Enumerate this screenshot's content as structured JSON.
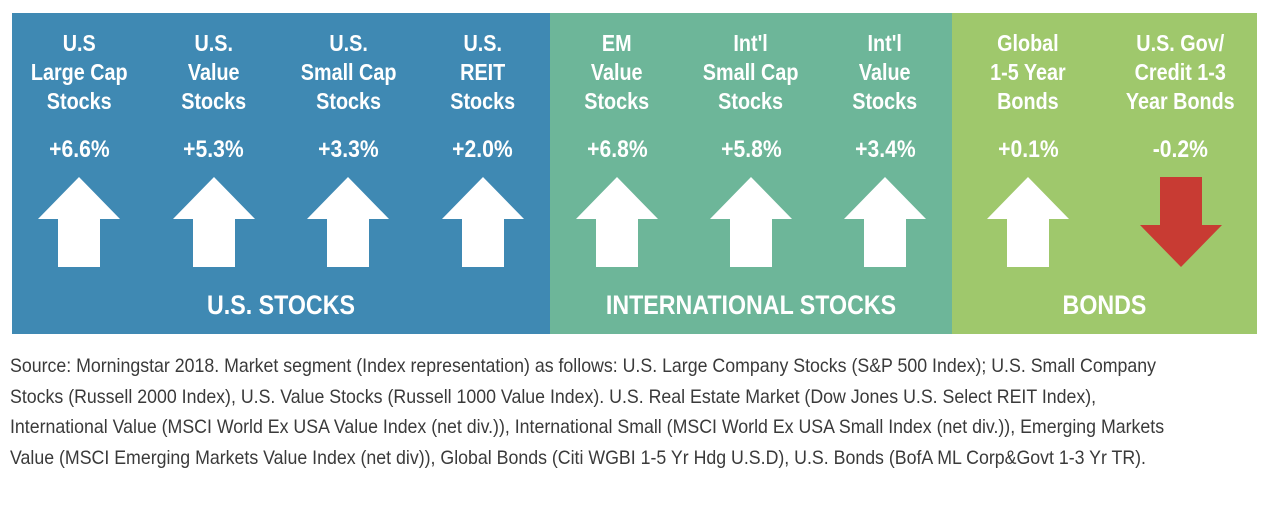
{
  "colors": {
    "us_panel": "#3f89b3",
    "intl_panel": "#6db699",
    "bonds_panel": "#9fc86c",
    "up_arrow": "#ffffff",
    "down_arrow": "#c83b33",
    "text_on_panel": "#ffffff"
  },
  "groups": [
    {
      "key": "us",
      "label": "U.S. STOCKS",
      "color": "#3f89b3",
      "items": [
        {
          "title_lines": [
            "U.S",
            "Large Cap",
            "Stocks"
          ],
          "value": "+6.6%",
          "direction": "up"
        },
        {
          "title_lines": [
            "U.S.",
            "Value",
            "Stocks"
          ],
          "value": "+5.3%",
          "direction": "up"
        },
        {
          "title_lines": [
            "U.S.",
            "Small Cap",
            "Stocks"
          ],
          "value": "+3.3%",
          "direction": "up"
        },
        {
          "title_lines": [
            "U.S.",
            "REIT",
            "Stocks"
          ],
          "value": "+2.0%",
          "direction": "up"
        }
      ]
    },
    {
      "key": "intl",
      "label": "INTERNATIONAL STOCKS",
      "color": "#6db699",
      "items": [
        {
          "title_lines": [
            "EM",
            "Value",
            "Stocks"
          ],
          "value": "+6.8%",
          "direction": "up"
        },
        {
          "title_lines": [
            "Int'l",
            "Small Cap",
            "Stocks"
          ],
          "value": "+5.8%",
          "direction": "up"
        },
        {
          "title_lines": [
            "Int'l",
            "Value",
            "Stocks"
          ],
          "value": "+3.4%",
          "direction": "up"
        }
      ]
    },
    {
      "key": "bonds",
      "label": "BONDS",
      "color": "#9fc86c",
      "items": [
        {
          "title_lines": [
            "Global",
            "1-5 Year",
            "Bonds"
          ],
          "value": "+0.1%",
          "direction": "up"
        },
        {
          "title_lines": [
            "U.S. Gov/",
            "Credit 1-3",
            "Year Bonds"
          ],
          "value": "-0.2%",
          "direction": "down"
        }
      ]
    }
  ],
  "source_note": "Source: Morningstar 2018. Market segment (Index representation) as follows: U.S. Large Company Stocks (S&P 500 Index); U.S. Small Company Stocks (Russell 2000 Index), U.S. Value Stocks (Russell 1000 Value Index). U.S. Real Estate Market (Dow Jones U.S. Select REIT Index), International Value (MSCI World Ex USA Value Index (net div.)), International Small (MSCI World Ex USA Small Index (net div.)), Emerging Markets Value (MSCI Emerging Markets Value Index (net div)), Global Bonds (Citi WGBI 1-5 Yr Hdg U.S.D), U.S. Bonds (BofA ML Corp&Govt 1-3 Yr TR)."
}
